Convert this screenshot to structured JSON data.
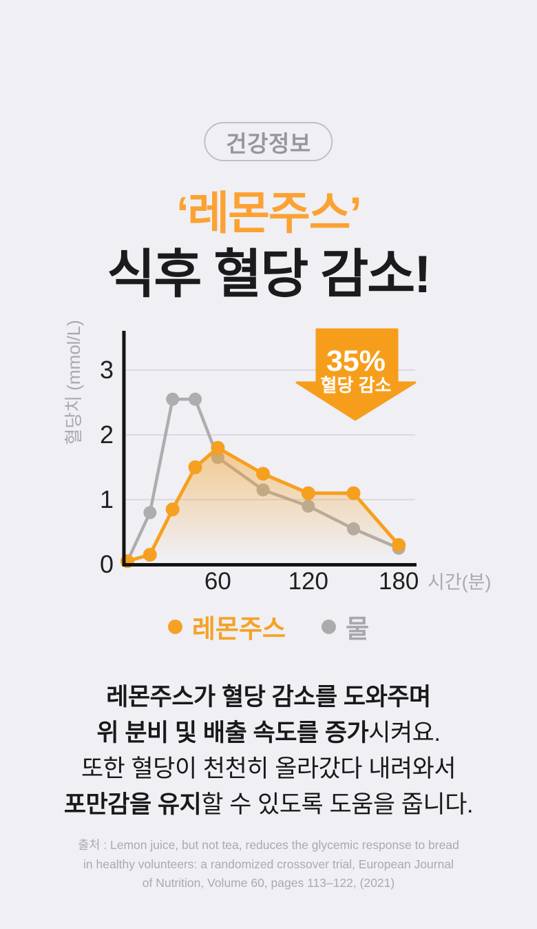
{
  "page": {
    "badge": "건강정보",
    "title_highlight": "‘레몬주스’",
    "title_main": "식후 혈당 감소!"
  },
  "chart_data": {
    "type": "line",
    "x": [
      0,
      15,
      30,
      45,
      60,
      90,
      120,
      150,
      180
    ],
    "series": [
      {
        "name": "레몬주스",
        "color": "#F6A01F",
        "values": [
          0.05,
          0.15,
          0.85,
          1.5,
          1.8,
          1.4,
          1.1,
          1.1,
          0.3
        ],
        "fill": true
      },
      {
        "name": "물",
        "color": "#ADADAF",
        "values": [
          0.05,
          0.8,
          2.55,
          2.55,
          1.65,
          1.15,
          0.9,
          0.55,
          0.25
        ],
        "fill": false
      }
    ],
    "ylabel": "혈당치 (mmol/L)",
    "xlabel": "시간(분)",
    "yticks": [
      0,
      1,
      2,
      3
    ],
    "xticks": [
      60,
      120,
      180
    ],
    "ylim": [
      0,
      3.6
    ],
    "xlim": [
      0,
      195
    ],
    "grid": true,
    "legend_position": "bottom",
    "annotation": {
      "line1": "35%",
      "line2": "혈당 감소",
      "arrow_color": "#F69E1C"
    },
    "grid_color": "#D9D9DF",
    "axis_color": "#141414",
    "tick_color": "#1F1F21"
  },
  "legend": {
    "items": [
      {
        "label": "레몬주스",
        "color": "#F6A124"
      },
      {
        "label": "물",
        "color": "#ABABAD"
      }
    ]
  },
  "body": {
    "line1_bold": "레몬주스가 혈당 감소를 도와주며",
    "line2_bold": "위 분비 및 배출 속도를 증가",
    "line2_rest": "시켜요.",
    "line3": "또한 혈당이 천천히 올라갔다 내려와서",
    "line4_bold": "포만감을 유지",
    "line4_rest": "할 수 있도록 도움을 줍니다."
  },
  "source": {
    "line1": "출처 : Lemon juice, but not tea, reduces the glycemic response to bread",
    "line2": "in healthy volunteers: a randomized crossover trial, European Journal",
    "line3": "of Nutrition, Volume 60, pages 113–122, (2021)"
  }
}
